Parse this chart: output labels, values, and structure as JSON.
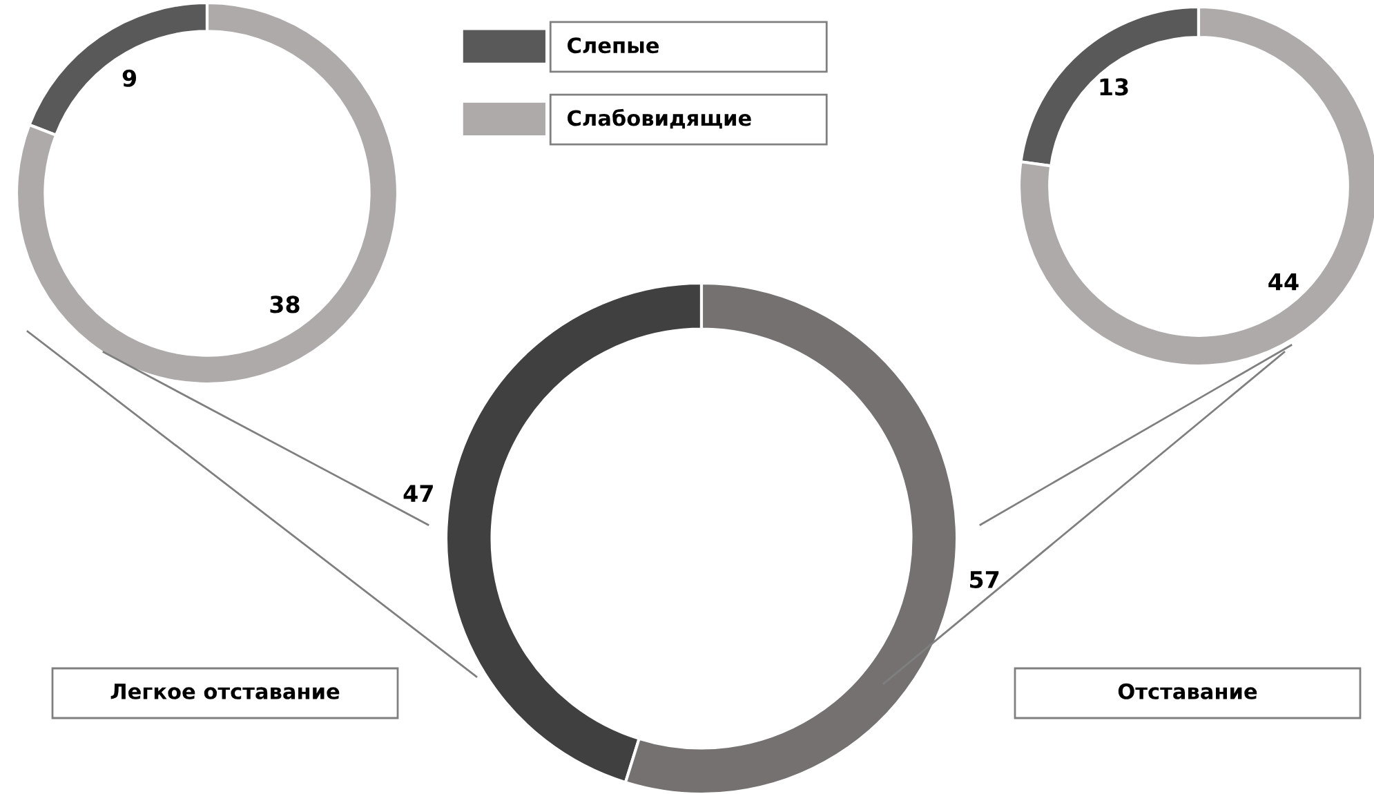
{
  "chart_data": [
    {
      "type": "donut",
      "categories": [
        "Слепые",
        "Слабовидящие"
      ],
      "values": [
        9,
        38
      ],
      "colors": [
        "#595959",
        "#aeaaaa"
      ],
      "data_labels": true,
      "legend": "top"
    },
    {
      "type": "donut",
      "categories": [
        "Легкое отставание",
        "Отставание"
      ],
      "values": [
        47,
        57
      ],
      "colors": [
        "#404040",
        "#757171"
      ],
      "data_labels": true
    },
    {
      "type": "donut",
      "categories": [
        null,
        null
      ],
      "values": [
        13,
        44
      ],
      "colors": [
        "#595959",
        "#aeaaaa"
      ],
      "data_labels": true
    }
  ]
}
